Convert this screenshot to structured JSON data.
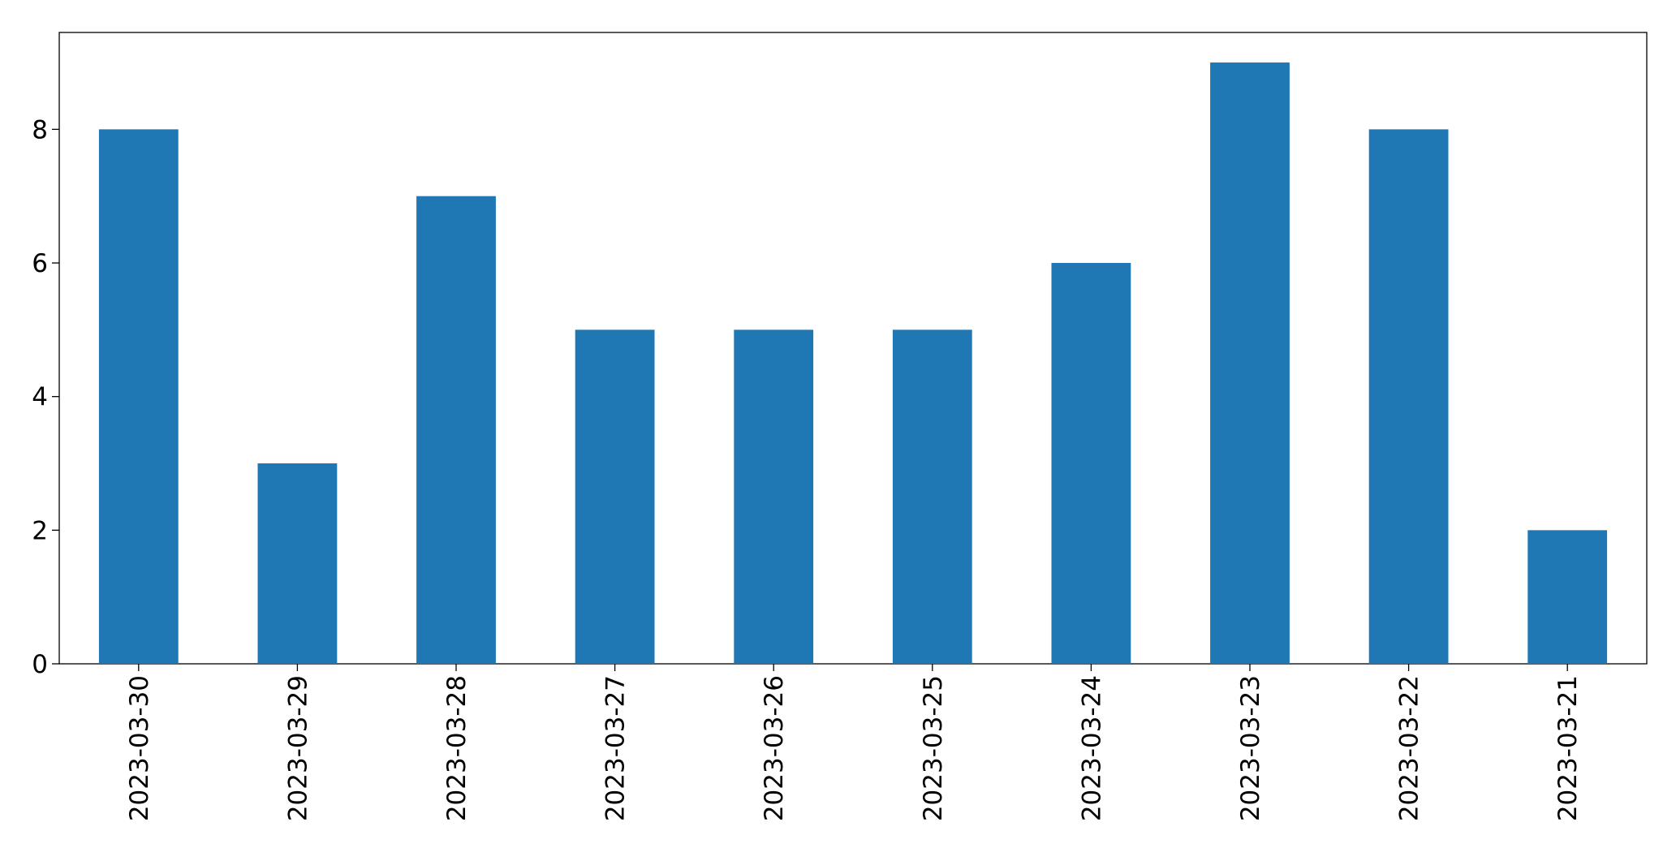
{
  "chart_data": {
    "type": "bar",
    "categories": [
      "2023-03-30",
      "2023-03-29",
      "2023-03-28",
      "2023-03-27",
      "2023-03-26",
      "2023-03-25",
      "2023-03-24",
      "2023-03-23",
      "2023-03-22",
      "2023-03-21"
    ],
    "values": [
      8,
      3,
      7,
      5,
      5,
      5,
      6,
      9,
      8,
      2
    ],
    "color": "#1f77b4",
    "ylim": [
      0,
      9.45
    ],
    "yticks": [
      0,
      2,
      4,
      6,
      8
    ],
    "grid": false
  }
}
